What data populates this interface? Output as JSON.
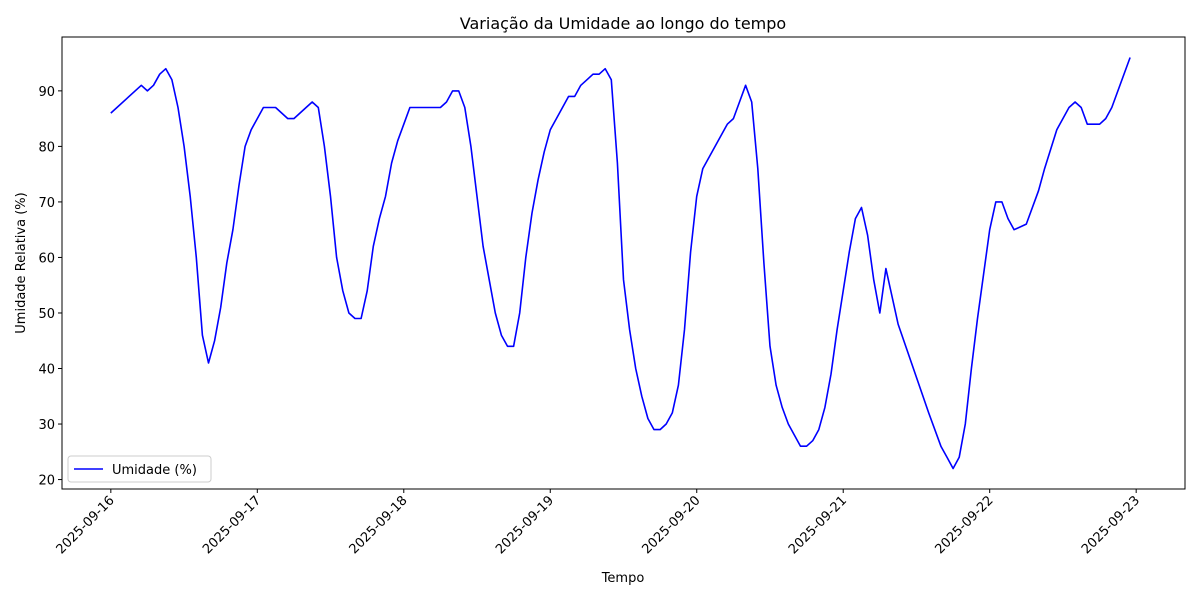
{
  "chart_data": {
    "type": "line",
    "title": "Variação da Umidade ao longo do tempo",
    "xlabel": "Tempo",
    "ylabel": "Umidade Relativa (%)",
    "xlim": [
      "2025-09-15 16:00",
      "2025-09-23 08:00"
    ],
    "ylim": [
      18.3,
      99.7
    ],
    "x_ticks": [
      "2025-09-16",
      "2025-09-17",
      "2025-09-18",
      "2025-09-19",
      "2025-09-20",
      "2025-09-21",
      "2025-09-22",
      "2025-09-23"
    ],
    "y_ticks": [
      20,
      30,
      40,
      50,
      60,
      70,
      80,
      90
    ],
    "grid": false,
    "legend": {
      "position": "bottom-left"
    },
    "series": [
      {
        "name": "Umidade (%)",
        "color": "#0000ff",
        "x": [
          "2025-09-16 00:00",
          "2025-09-16 05:00",
          "2025-09-16 06:00",
          "2025-09-16 07:00",
          "2025-09-16 08:00",
          "2025-09-16 09:00",
          "2025-09-16 10:00",
          "2025-09-16 11:00",
          "2025-09-16 12:00",
          "2025-09-16 13:00",
          "2025-09-16 14:00",
          "2025-09-16 15:00",
          "2025-09-16 16:00",
          "2025-09-16 17:00",
          "2025-09-16 18:00",
          "2025-09-16 19:00",
          "2025-09-16 20:00",
          "2025-09-16 21:00",
          "2025-09-16 22:00",
          "2025-09-16 23:00",
          "2025-09-17 00:00",
          "2025-09-17 01:00",
          "2025-09-17 03:00",
          "2025-09-17 05:00",
          "2025-09-17 06:00",
          "2025-09-17 08:00",
          "2025-09-17 09:00",
          "2025-09-17 10:00",
          "2025-09-17 11:00",
          "2025-09-17 12:00",
          "2025-09-17 13:00",
          "2025-09-17 14:00",
          "2025-09-17 15:00",
          "2025-09-17 16:00",
          "2025-09-17 17:00",
          "2025-09-17 18:00",
          "2025-09-17 19:00",
          "2025-09-17 20:00",
          "2025-09-17 21:00",
          "2025-09-17 22:00",
          "2025-09-17 23:00",
          "2025-09-18 00:00",
          "2025-09-18 01:00",
          "2025-09-18 06:00",
          "2025-09-18 07:00",
          "2025-09-18 08:00",
          "2025-09-18 09:00",
          "2025-09-18 10:00",
          "2025-09-18 11:00",
          "2025-09-18 12:00",
          "2025-09-18 13:00",
          "2025-09-18 14:00",
          "2025-09-18 15:00",
          "2025-09-18 16:00",
          "2025-09-18 17:00",
          "2025-09-18 18:00",
          "2025-09-18 19:00",
          "2025-09-18 20:00",
          "2025-09-18 21:00",
          "2025-09-18 22:00",
          "2025-09-18 23:00",
          "2025-09-19 00:00",
          "2025-09-19 01:00",
          "2025-09-19 02:00",
          "2025-09-19 03:00",
          "2025-09-19 04:00",
          "2025-09-19 05:00",
          "2025-09-19 06:00",
          "2025-09-19 07:00",
          "2025-09-19 08:00",
          "2025-09-19 09:00",
          "2025-09-19 10:00",
          "2025-09-19 11:00",
          "2025-09-19 12:00",
          "2025-09-19 13:00",
          "2025-09-19 14:00",
          "2025-09-19 15:00",
          "2025-09-19 16:00",
          "2025-09-19 17:00",
          "2025-09-19 18:00",
          "2025-09-19 19:00",
          "2025-09-19 20:00",
          "2025-09-19 21:00",
          "2025-09-19 22:00",
          "2025-09-19 23:00",
          "2025-09-20 00:00",
          "2025-09-20 01:00",
          "2025-09-20 05:00",
          "2025-09-20 06:00",
          "2025-09-20 07:00",
          "2025-09-20 08:00",
          "2025-09-20 09:00",
          "2025-09-20 10:00",
          "2025-09-20 11:00",
          "2025-09-20 12:00",
          "2025-09-20 13:00",
          "2025-09-20 14:00",
          "2025-09-20 15:00",
          "2025-09-20 16:00",
          "2025-09-20 17:00",
          "2025-09-20 18:00",
          "2025-09-20 19:00",
          "2025-09-20 20:00",
          "2025-09-20 21:00",
          "2025-09-20 22:00",
          "2025-09-20 23:00",
          "2025-09-21 00:00",
          "2025-09-21 01:00",
          "2025-09-21 02:00",
          "2025-09-21 03:00",
          "2025-09-21 04:00",
          "2025-09-21 05:00",
          "2025-09-21 06:00",
          "2025-09-21 07:00",
          "2025-09-21 09:00",
          "2025-09-21 14:00",
          "2025-09-21 16:00",
          "2025-09-21 17:00",
          "2025-09-21 18:00",
          "2025-09-21 19:00",
          "2025-09-21 20:00",
          "2025-09-21 21:00",
          "2025-09-21 22:00",
          "2025-09-21 23:00",
          "2025-09-22 00:00",
          "2025-09-22 01:00",
          "2025-09-22 02:00",
          "2025-09-22 03:00",
          "2025-09-22 04:00",
          "2025-09-22 06:00",
          "2025-09-22 08:00",
          "2025-09-22 09:00",
          "2025-09-22 11:00",
          "2025-09-22 12:00",
          "2025-09-22 13:00",
          "2025-09-22 14:00",
          "2025-09-22 15:00",
          "2025-09-22 16:00",
          "2025-09-22 18:00",
          "2025-09-22 19:00",
          "2025-09-22 20:00",
          "2025-09-22 23:00"
        ],
        "y": [
          86,
          91,
          90,
          91,
          93,
          94,
          92,
          87,
          80,
          71,
          60,
          46,
          41,
          45,
          51,
          59,
          65,
          73,
          80,
          83,
          85,
          87,
          87,
          85,
          85,
          87,
          88,
          87,
          80,
          71,
          60,
          54,
          50,
          49,
          49,
          54,
          62,
          67,
          71,
          77,
          81,
          84,
          87,
          87,
          88,
          90,
          90,
          87,
          80,
          71,
          62,
          56,
          50,
          46,
          44,
          44,
          50,
          60,
          68,
          74,
          79,
          83,
          85,
          87,
          89,
          89,
          91,
          92,
          93,
          93,
          94,
          92,
          77,
          56,
          47,
          40,
          35,
          31,
          29,
          29,
          30,
          32,
          37,
          47,
          61,
          71,
          76,
          84,
          85,
          88,
          91,
          88,
          76,
          59,
          44,
          37,
          33,
          30,
          28,
          26,
          26,
          27,
          29,
          33,
          39,
          47,
          54,
          61,
          67,
          69,
          64,
          56,
          50,
          58,
          48,
          32,
          26,
          24,
          22,
          24,
          30,
          40,
          49,
          57,
          65,
          70,
          70,
          67,
          65,
          66,
          72,
          76,
          83,
          85,
          87,
          88,
          87,
          84,
          84,
          85,
          87,
          96
        ]
      }
    ]
  }
}
